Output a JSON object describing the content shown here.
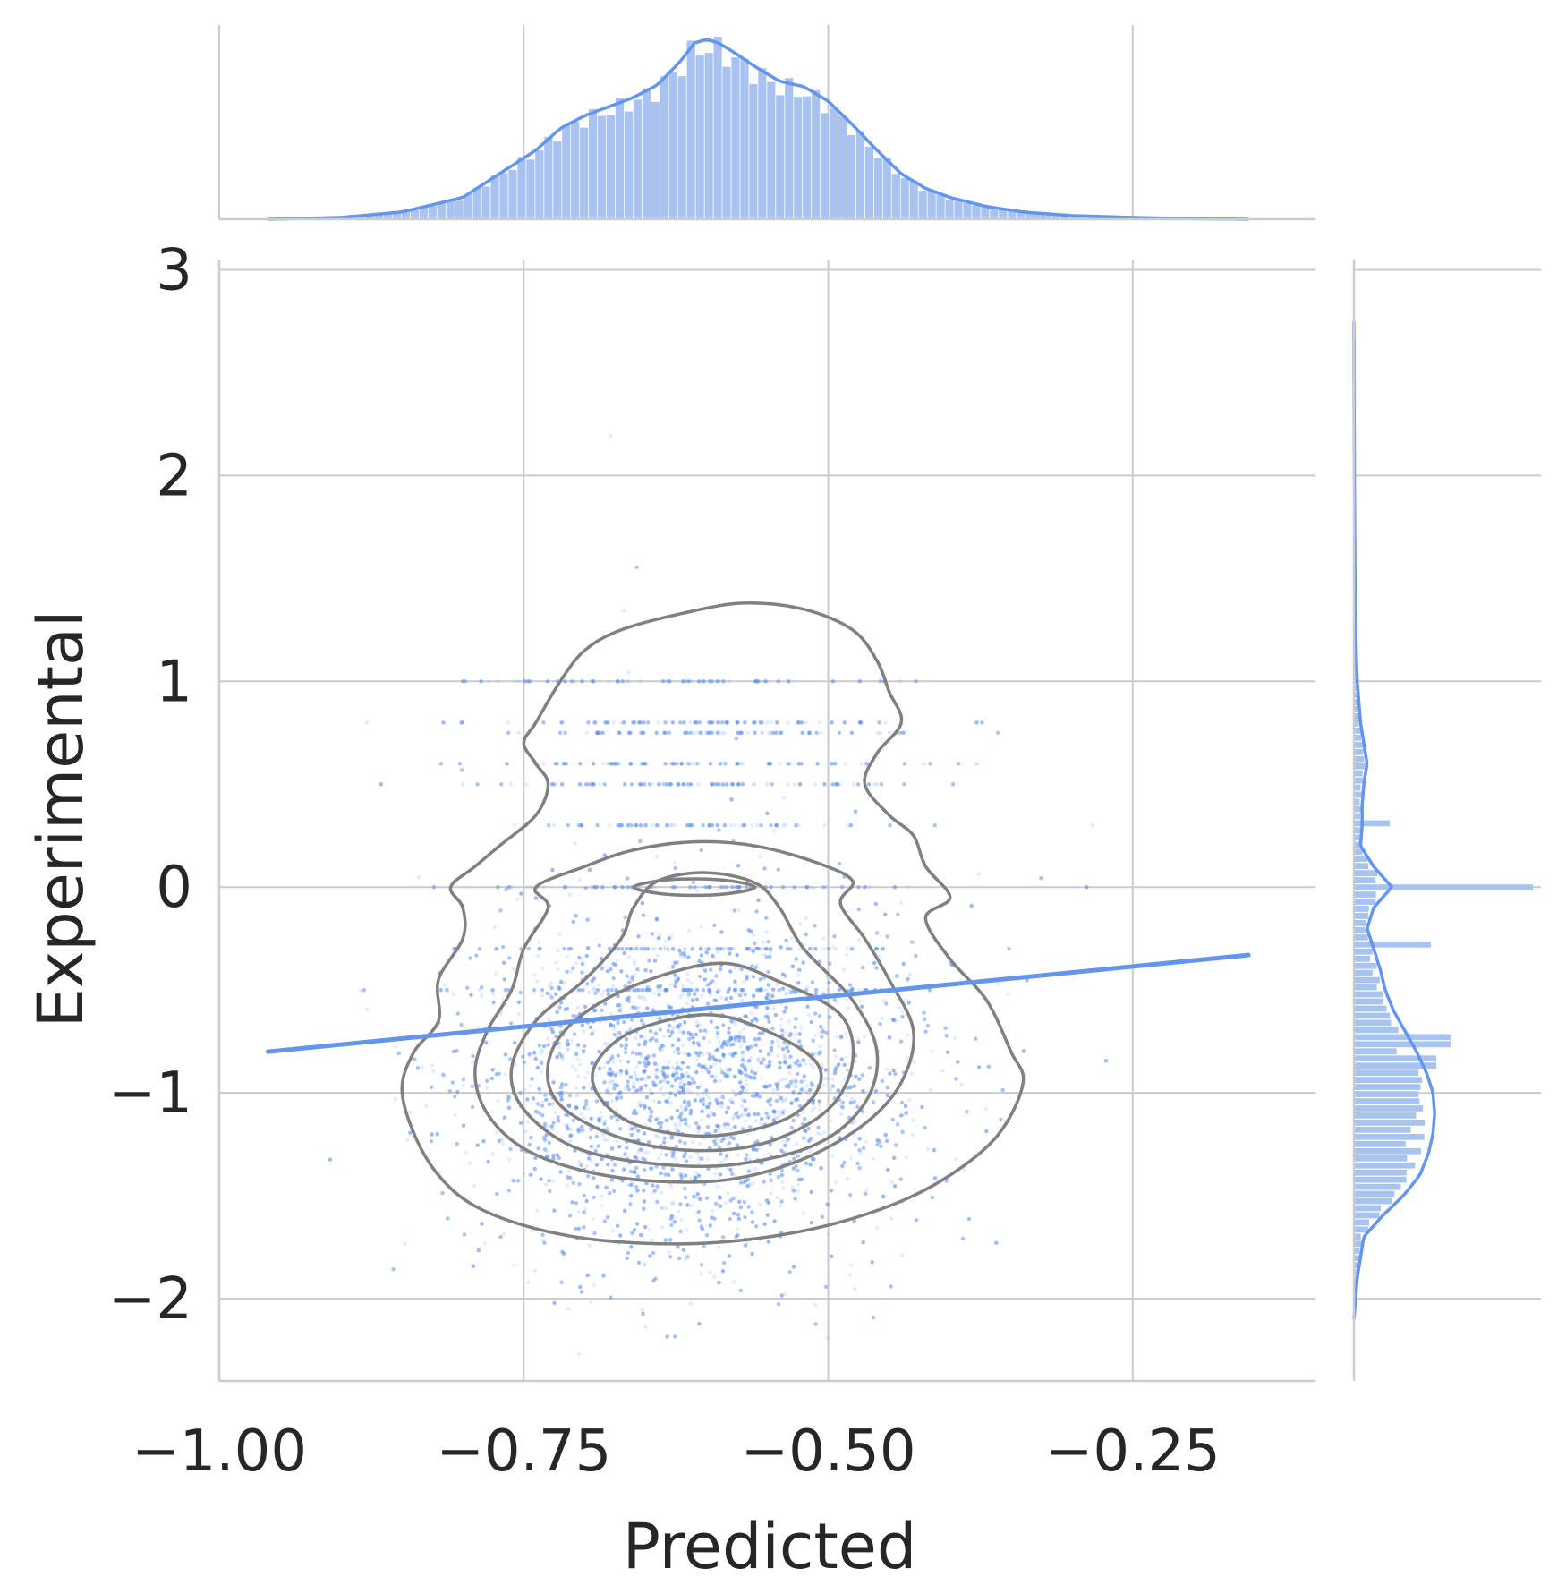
{
  "chart_data": {
    "type": "scatter",
    "subtype": "joint-plot",
    "xlabel": "Predicted",
    "ylabel": "Experimental",
    "xlim": [
      -1.0,
      -0.1
    ],
    "ylim": [
      -2.4,
      3.05
    ],
    "xticks": [
      -1.0,
      -0.75,
      -0.5,
      -0.25
    ],
    "xtick_labels": [
      "−1.00",
      "−0.75",
      "−0.50",
      "−0.25"
    ],
    "yticks": [
      -2,
      -1,
      0,
      1,
      2,
      3
    ],
    "ytick_labels": [
      "−2",
      "−1",
      "0",
      "1",
      "2",
      "3"
    ],
    "grid": true,
    "colors": {
      "points": "#6495ed",
      "regression": "#6495ed",
      "contour": "#808080",
      "hist": "#a9c3f0",
      "kde": "#6495ed",
      "grid": "#cccccc",
      "text": "#262626"
    },
    "regression_line": {
      "x": [
        -0.96,
        -0.155
      ],
      "y": [
        -0.8,
        -0.33
      ]
    },
    "point_cloud": {
      "center": [
        -0.61,
        -0.95
      ],
      "x_std": 0.085,
      "y_std": 0.42,
      "count": 9000,
      "stripes_y": [
        1.0,
        0.8,
        0.75,
        0.6,
        0.5,
        0.3,
        0.0,
        -0.3,
        -0.5
      ]
    },
    "contours": [
      {
        "level": 1,
        "points": [
          [
            -0.67,
            1.25
          ],
          [
            -0.62,
            1.33
          ],
          [
            -0.57,
            1.38
          ],
          [
            -0.52,
            1.35
          ],
          [
            -0.48,
            1.25
          ],
          [
            -0.46,
            1.1
          ],
          [
            -0.45,
            0.95
          ],
          [
            -0.44,
            0.8
          ],
          [
            -0.46,
            0.65
          ],
          [
            -0.47,
            0.5
          ],
          [
            -0.45,
            0.35
          ],
          [
            -0.43,
            0.25
          ],
          [
            -0.42,
            0.1
          ],
          [
            -0.4,
            -0.05
          ],
          [
            -0.42,
            -0.15
          ],
          [
            -0.4,
            -0.35
          ],
          [
            -0.37,
            -0.55
          ],
          [
            -0.35,
            -0.8
          ],
          [
            -0.34,
            -0.95
          ],
          [
            -0.36,
            -1.2
          ],
          [
            -0.4,
            -1.4
          ],
          [
            -0.45,
            -1.55
          ],
          [
            -0.52,
            -1.67
          ],
          [
            -0.6,
            -1.73
          ],
          [
            -0.68,
            -1.72
          ],
          [
            -0.74,
            -1.66
          ],
          [
            -0.79,
            -1.55
          ],
          [
            -0.82,
            -1.4
          ],
          [
            -0.84,
            -1.2
          ],
          [
            -0.85,
            -0.98
          ],
          [
            -0.84,
            -0.8
          ],
          [
            -0.82,
            -0.65
          ],
          [
            -0.82,
            -0.45
          ],
          [
            -0.8,
            -0.25
          ],
          [
            -0.8,
            -0.1
          ],
          [
            -0.81,
            0.0
          ],
          [
            -0.79,
            0.1
          ],
          [
            -0.77,
            0.2
          ],
          [
            -0.74,
            0.35
          ],
          [
            -0.73,
            0.5
          ],
          [
            -0.74,
            0.6
          ],
          [
            -0.75,
            0.7
          ],
          [
            -0.74,
            0.8
          ],
          [
            -0.72,
            1.0
          ],
          [
            -0.7,
            1.15
          ],
          [
            -0.67,
            1.25
          ]
        ]
      },
      {
        "level": 2,
        "points": [
          [
            -0.61,
            0.22
          ],
          [
            -0.56,
            0.2
          ],
          [
            -0.51,
            0.12
          ],
          [
            -0.48,
            0.03
          ],
          [
            -0.49,
            -0.08
          ],
          [
            -0.47,
            -0.25
          ],
          [
            -0.45,
            -0.45
          ],
          [
            -0.43,
            -0.7
          ],
          [
            -0.44,
            -0.95
          ],
          [
            -0.47,
            -1.15
          ],
          [
            -0.52,
            -1.32
          ],
          [
            -0.58,
            -1.42
          ],
          [
            -0.64,
            -1.43
          ],
          [
            -0.7,
            -1.38
          ],
          [
            -0.75,
            -1.27
          ],
          [
            -0.78,
            -1.1
          ],
          [
            -0.79,
            -0.9
          ],
          [
            -0.78,
            -0.7
          ],
          [
            -0.76,
            -0.5
          ],
          [
            -0.75,
            -0.3
          ],
          [
            -0.73,
            -0.1
          ],
          [
            -0.74,
            0.0
          ],
          [
            -0.7,
            0.1
          ],
          [
            -0.66,
            0.18
          ],
          [
            -0.61,
            0.22
          ]
        ]
      },
      {
        "level": 3,
        "points": [
          [
            -0.6,
            0.07
          ],
          [
            -0.56,
            0.02
          ],
          [
            -0.54,
            -0.1
          ],
          [
            -0.52,
            -0.3
          ],
          [
            -0.48,
            -0.55
          ],
          [
            -0.46,
            -0.8
          ],
          [
            -0.47,
            -1.05
          ],
          [
            -0.51,
            -1.25
          ],
          [
            -0.58,
            -1.35
          ],
          [
            -0.65,
            -1.34
          ],
          [
            -0.71,
            -1.26
          ],
          [
            -0.75,
            -1.08
          ],
          [
            -0.76,
            -0.88
          ],
          [
            -0.74,
            -0.65
          ],
          [
            -0.7,
            -0.45
          ],
          [
            -0.67,
            -0.25
          ],
          [
            -0.66,
            -0.1
          ],
          [
            -0.64,
            0.03
          ],
          [
            -0.6,
            0.07
          ]
        ]
      },
      {
        "level": 4,
        "points": [
          [
            -0.59,
            -0.37
          ],
          [
            -0.54,
            -0.46
          ],
          [
            -0.49,
            -0.62
          ],
          [
            -0.48,
            -0.85
          ],
          [
            -0.5,
            -1.08
          ],
          [
            -0.55,
            -1.24
          ],
          [
            -0.61,
            -1.28
          ],
          [
            -0.67,
            -1.22
          ],
          [
            -0.72,
            -1.06
          ],
          [
            -0.73,
            -0.86
          ],
          [
            -0.71,
            -0.66
          ],
          [
            -0.66,
            -0.48
          ],
          [
            -0.59,
            -0.37
          ]
        ]
      },
      {
        "level": 5,
        "points": [
          [
            -0.6,
            -0.62
          ],
          [
            -0.55,
            -0.7
          ],
          [
            -0.51,
            -0.85
          ],
          [
            -0.51,
            -1.0
          ],
          [
            -0.54,
            -1.14
          ],
          [
            -0.6,
            -1.21
          ],
          [
            -0.66,
            -1.15
          ],
          [
            -0.69,
            -1.0
          ],
          [
            -0.69,
            -0.85
          ],
          [
            -0.66,
            -0.7
          ],
          [
            -0.6,
            -0.62
          ]
        ]
      },
      {
        "level": 6,
        "points": [
          [
            -0.61,
            0.04
          ],
          [
            -0.58,
            0.03
          ],
          [
            -0.56,
            0.0
          ],
          [
            -0.58,
            -0.03
          ],
          [
            -0.61,
            -0.04
          ],
          [
            -0.64,
            -0.03
          ],
          [
            -0.66,
            0.0
          ],
          [
            -0.64,
            0.03
          ],
          [
            -0.61,
            0.04
          ]
        ]
      }
    ],
    "top_kde": {
      "x": [
        -0.96,
        -0.9,
        -0.85,
        -0.8,
        -0.77,
        -0.74,
        -0.72,
        -0.7,
        -0.68,
        -0.66,
        -0.64,
        -0.62,
        -0.61,
        -0.6,
        -0.59,
        -0.58,
        -0.56,
        -0.54,
        -0.52,
        -0.5,
        -0.48,
        -0.46,
        -0.44,
        -0.42,
        -0.4,
        -0.37,
        -0.34,
        -0.3,
        -0.25,
        -0.2,
        -0.155
      ],
      "density": [
        0.0,
        0.01,
        0.04,
        0.12,
        0.25,
        0.38,
        0.5,
        0.57,
        0.62,
        0.67,
        0.74,
        0.88,
        0.97,
        0.99,
        0.97,
        0.93,
        0.84,
        0.76,
        0.73,
        0.65,
        0.52,
        0.38,
        0.25,
        0.17,
        0.12,
        0.07,
        0.04,
        0.02,
        0.01,
        0.003,
        0.0
      ]
    },
    "right_kde": {
      "y": [
        -2.1,
        -1.9,
        -1.7,
        -1.6,
        -1.5,
        -1.4,
        -1.3,
        -1.2,
        -1.1,
        -1.0,
        -0.9,
        -0.8,
        -0.7,
        -0.6,
        -0.5,
        -0.4,
        -0.3,
        -0.2,
        -0.1,
        0.0,
        0.1,
        0.2,
        0.3,
        0.4,
        0.5,
        0.6,
        0.7,
        0.8,
        0.9,
        1.0,
        1.2,
        1.4,
        1.7,
        2.0,
        2.4,
        2.75
      ],
      "density": [
        0.0,
        0.02,
        0.06,
        0.17,
        0.3,
        0.4,
        0.45,
        0.48,
        0.49,
        0.48,
        0.44,
        0.38,
        0.31,
        0.24,
        0.19,
        0.16,
        0.12,
        0.08,
        0.12,
        0.23,
        0.12,
        0.04,
        0.05,
        0.05,
        0.06,
        0.08,
        0.06,
        0.04,
        0.03,
        0.02,
        0.012,
        0.008,
        0.005,
        0.003,
        0.001,
        0.0
      ]
    },
    "right_hist_spikes": [
      {
        "y": 0.0,
        "density": 1.0
      },
      {
        "y": -0.28,
        "density": 0.43
      },
      {
        "y": 0.3,
        "density": 0.2
      },
      {
        "y": -0.75,
        "density": 0.54
      },
      {
        "y": -0.85,
        "density": 0.46
      },
      {
        "y": -0.95,
        "density": 0.38
      }
    ]
  }
}
